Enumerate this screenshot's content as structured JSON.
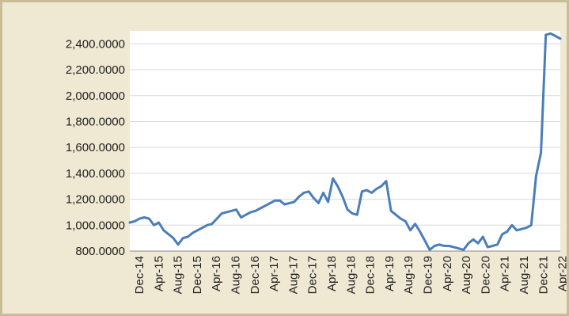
{
  "chart_data": {
    "type": "line",
    "title": "",
    "xlabel": "",
    "ylabel": "",
    "ylim": [
      800,
      2500
    ],
    "y_ticks": [
      800,
      1000,
      1200,
      1400,
      1600,
      1800,
      2000,
      2200,
      2400
    ],
    "y_tick_labels": [
      "800.0000",
      "1,000.0000",
      "1,200.0000",
      "1,400.0000",
      "1,600.0000",
      "1,800.0000",
      "2,000.0000",
      "2,200.0000",
      "2,400.0000"
    ],
    "x_tick_labels": [
      "Dec-14",
      "Apr-15",
      "Aug-15",
      "Dec-15",
      "Apr-16",
      "Aug-16",
      "Dec-16",
      "Apr-17",
      "Aug-17",
      "Dec-17",
      "Apr-18",
      "Aug-18",
      "Dec-18",
      "Apr-19",
      "Aug-19",
      "Dec-19",
      "Apr-20",
      "Aug-20",
      "Dec-20",
      "Apr-21",
      "Aug-21",
      "Dec-21",
      "Apr-22"
    ],
    "grid": true,
    "legend": "none",
    "line_color": "#4a7ebb",
    "series": [
      {
        "x": [
          0,
          1,
          2,
          3,
          4,
          5,
          6,
          7,
          8,
          9,
          10,
          11,
          12,
          13,
          14,
          15,
          16,
          17,
          18,
          19,
          20,
          21,
          22,
          23,
          24,
          25,
          26,
          27,
          28,
          29,
          30,
          31,
          32,
          33,
          34,
          35,
          36,
          37,
          38,
          39,
          40,
          41,
          42,
          43,
          44,
          45,
          46,
          47,
          48,
          49,
          50,
          51,
          52,
          53,
          54,
          55,
          56,
          57,
          58,
          59,
          60,
          61,
          62,
          63,
          64,
          65,
          66,
          67,
          68,
          69,
          70,
          71,
          72,
          73,
          74,
          75,
          76,
          77,
          78,
          79,
          80,
          81,
          82,
          83,
          84,
          85,
          86,
          87,
          88,
          89
        ],
        "values": [
          1020,
          1030,
          1050,
          1060,
          1050,
          1000,
          1020,
          960,
          930,
          900,
          850,
          900,
          910,
          940,
          960,
          980,
          1000,
          1010,
          1050,
          1090,
          1100,
          1110,
          1120,
          1060,
          1080,
          1100,
          1110,
          1130,
          1150,
          1170,
          1190,
          1190,
          1160,
          1170,
          1180,
          1220,
          1250,
          1260,
          1210,
          1170,
          1250,
          1180,
          1360,
          1300,
          1220,
          1120,
          1090,
          1080,
          1260,
          1270,
          1250,
          1280,
          1300,
          1340,
          1110,
          1080,
          1050,
          1030,
          960,
          1010,
          950,
          880,
          810,
          840,
          850,
          840,
          840,
          830,
          820,
          810,
          860,
          890,
          860,
          910,
          830,
          840,
          850,
          930,
          950,
          1000,
          960,
          970,
          980,
          1000,
          1380,
          1560,
          2470,
          2480,
          2460,
          2440
        ]
      }
    ]
  }
}
